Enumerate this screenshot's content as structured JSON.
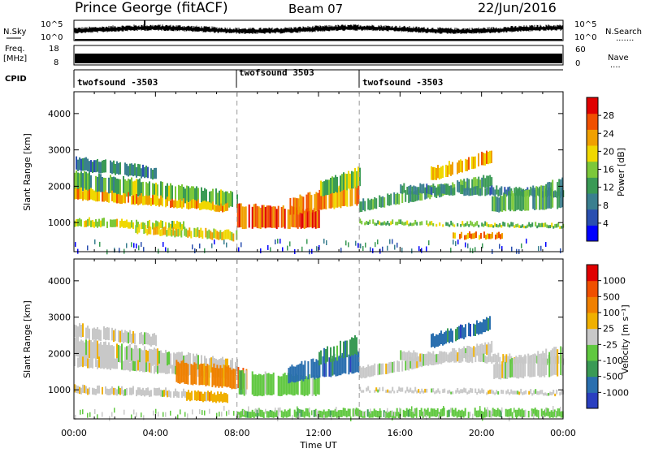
{
  "header": {
    "station": "Prince George (fitACF)",
    "beam": "Beam 07",
    "date": "22/Jun/2016"
  },
  "nsky_panel": {
    "left_label": "N.Sky",
    "left_ticks": [
      "10^5",
      "10^0"
    ],
    "right_ticks": [
      "10^5",
      "10^0"
    ],
    "right_label": "N.Search",
    "right_label_suffix": "......."
  },
  "freq_panel": {
    "left_label_1": "Freq.",
    "left_label_2": "[MHz]",
    "left_ticks": [
      "18",
      "8"
    ],
    "right_ticks": [
      "60",
      "0"
    ],
    "right_label": "Nave",
    "right_label_suffix": "...."
  },
  "cpid_panel": {
    "label": "CPID",
    "segments": [
      "twofsound -3503",
      "twofsound 3503",
      "twofsound -3503"
    ]
  },
  "chart_data": [
    {
      "type": "heatmap",
      "name": "power",
      "ylabel": "Slant Range [km]",
      "ylim": [
        200,
        4600
      ],
      "y_ticks": [
        1000,
        2000,
        3000,
        4000
      ],
      "xlim": [
        0,
        24
      ],
      "colorbar": {
        "label": "Power [dB]",
        "range": [
          0,
          32
        ],
        "ticks": [
          4,
          8,
          12,
          16,
          20,
          24,
          28
        ],
        "colors": [
          "#0000ff",
          "#2a4fb0",
          "#3a7f8f",
          "#3a9a55",
          "#7cc83a",
          "#f0d800",
          "#f0a000",
          "#f05000",
          "#e00000"
        ]
      },
      "echo_bands": [
        {
          "t": [
            0.0,
            8.0
          ],
          "range_start": [
            1900,
            1400
          ],
          "range_end": [
            2400,
            1800
          ],
          "level": 14
        },
        {
          "t": [
            0.0,
            7.5
          ],
          "range_start": [
            1650,
            1300
          ],
          "range_end": [
            1950,
            1500
          ],
          "level": 22
        },
        {
          "t": [
            0.0,
            4.0
          ],
          "range_start": [
            2450,
            2200
          ],
          "range_end": [
            2800,
            2500
          ],
          "level": 10
        },
        {
          "t": [
            0.0,
            5.5
          ],
          "range_start": [
            900,
            800
          ],
          "range_end": [
            1100,
            1000
          ],
          "level": 18
        },
        {
          "t": [
            3.0,
            8.0
          ],
          "range_start": [
            700,
            500
          ],
          "range_end": [
            900,
            750
          ],
          "level": 20
        },
        {
          "t": [
            8.0,
            12.0
          ],
          "range_start": [
            850,
            850
          ],
          "range_end": [
            1500,
            1350
          ],
          "level": 27
        },
        {
          "t": [
            10.5,
            14.0
          ],
          "range_start": [
            1200,
            1500
          ],
          "range_end": [
            1650,
            2100
          ],
          "level": 24
        },
        {
          "t": [
            12.0,
            14.0
          ],
          "range_start": [
            1700,
            2000
          ],
          "range_end": [
            2100,
            2500
          ],
          "level": 15
        },
        {
          "t": [
            14.0,
            20.5
          ],
          "range_start": [
            1300,
            2000
          ],
          "range_end": [
            1600,
            2300
          ],
          "level": 12
        },
        {
          "t": [
            17.5,
            20.5
          ],
          "range_start": [
            2150,
            2650
          ],
          "range_end": [
            2500,
            3000
          ],
          "level": 22
        },
        {
          "t": [
            14.0,
            24.0
          ],
          "range_start": [
            950,
            850
          ],
          "range_end": [
            1050,
            950
          ],
          "level": 15
        },
        {
          "t": [
            16.0,
            24.0
          ],
          "range_start": [
            1800,
            1700
          ],
          "range_end": [
            2050,
            1900
          ],
          "level": 10
        },
        {
          "t": [
            18.5,
            21.0
          ],
          "range_start": [
            550,
            550
          ],
          "range_end": [
            700,
            700
          ],
          "level": 24
        },
        {
          "t": [
            20.5,
            24.0
          ],
          "range_start": [
            1300,
            1400
          ],
          "range_end": [
            1700,
            2200
          ],
          "level": 12
        }
      ]
    },
    {
      "type": "heatmap",
      "name": "velocity",
      "ylabel": "Slant Range [km]",
      "xlabel": "Time UT",
      "ylim": [
        200,
        4600
      ],
      "y_ticks": [
        1000,
        2000,
        3000,
        4000
      ],
      "xlim": [
        0,
        24
      ],
      "x_ticks": [
        "00:00",
        "04:00",
        "08:00",
        "12:00",
        "16:00",
        "20:00",
        "00:00"
      ],
      "colorbar": {
        "label": "Velocity [m s⁻¹]",
        "ticks": [
          "1000",
          "500",
          "100",
          "25",
          "-25",
          "-100",
          "-500",
          "-1000"
        ],
        "colors": [
          "#2a3fc0",
          "#2a6faf",
          "#3a9a55",
          "#60c840",
          "#c8c8c8",
          "#f0b000",
          "#f08000",
          "#f05000",
          "#e00000"
        ]
      },
      "echo_bands": [
        {
          "t": [
            0.0,
            8.0
          ],
          "range_start": [
            1900,
            1400
          ],
          "range_end": [
            2400,
            1800
          ],
          "level": 4
        },
        {
          "t": [
            0.0,
            7.5
          ],
          "range_start": [
            1650,
            1300
          ],
          "range_end": [
            1950,
            1500
          ],
          "level": 4
        },
        {
          "t": [
            0.0,
            4.0
          ],
          "range_start": [
            2450,
            2200
          ],
          "range_end": [
            2800,
            2500
          ],
          "level": 4
        },
        {
          "t": [
            0.0,
            5.5
          ],
          "range_start": [
            900,
            800
          ],
          "range_end": [
            1100,
            1000
          ],
          "level": 4
        },
        {
          "t": [
            5.0,
            8.5
          ],
          "range_start": [
            1200,
            1000
          ],
          "range_end": [
            1800,
            1550
          ],
          "level": 6
        },
        {
          "t": [
            5.5,
            7.5
          ],
          "range_start": [
            700,
            650
          ],
          "range_end": [
            950,
            900
          ],
          "level": 5
        },
        {
          "t": [
            8.0,
            12.0
          ],
          "range_start": [
            850,
            850
          ],
          "range_end": [
            1500,
            1350
          ],
          "level": 3
        },
        {
          "t": [
            10.5,
            14.0
          ],
          "range_start": [
            1200,
            1500
          ],
          "range_end": [
            1650,
            2100
          ],
          "level": 1
        },
        {
          "t": [
            12.0,
            14.0
          ],
          "range_start": [
            1700,
            2000
          ],
          "range_end": [
            2100,
            2500
          ],
          "level": 2
        },
        {
          "t": [
            14.0,
            20.5
          ],
          "range_start": [
            1300,
            2000
          ],
          "range_end": [
            1600,
            2300
          ],
          "level": 4
        },
        {
          "t": [
            17.5,
            20.5
          ],
          "range_start": [
            2150,
            2650
          ],
          "range_end": [
            2500,
            3000
          ],
          "level": 1
        },
        {
          "t": [
            14.0,
            24.0
          ],
          "range_start": [
            950,
            850
          ],
          "range_end": [
            1050,
            950
          ],
          "level": 4
        },
        {
          "t": [
            16.0,
            24.0
          ],
          "range_start": [
            1800,
            1700
          ],
          "range_end": [
            2050,
            1900
          ],
          "level": 4
        },
        {
          "t": [
            20.5,
            24.0
          ],
          "range_start": [
            1300,
            1400
          ],
          "range_end": [
            1700,
            2200
          ],
          "level": 4
        },
        {
          "t": [
            8.0,
            24.0
          ],
          "range_start": [
            250,
            250
          ],
          "range_end": [
            450,
            450
          ],
          "level": 3
        }
      ]
    }
  ]
}
